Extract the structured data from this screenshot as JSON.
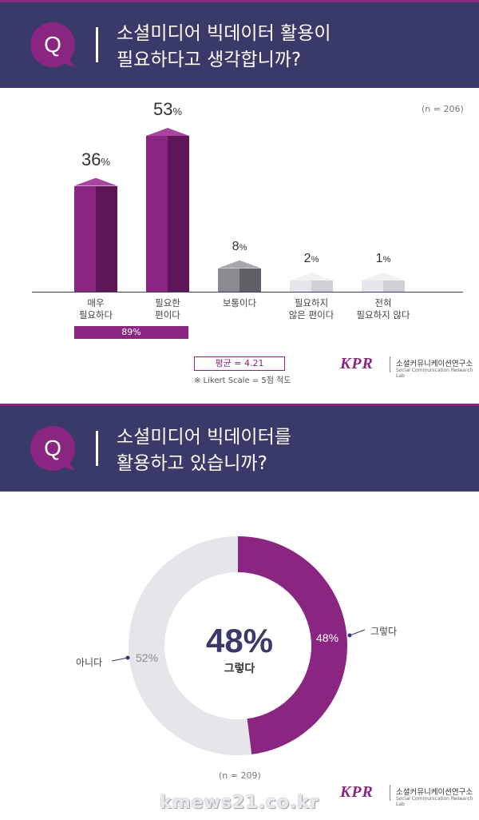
{
  "q1": {
    "badge": "Q",
    "line1": "소셜미디어 빅데이터 활용이",
    "line2": "필요하다고 생각합니까?",
    "n_label": "(n = 206)",
    "aggregate_label": "89%",
    "mean_label": "평균 = 4.21",
    "scale_note": "※ Likert Scale = 5점 척도"
  },
  "q2": {
    "badge": "Q",
    "line1": "소셜미디어 빅데이터를",
    "line2": "활용하고 있습니까?",
    "n_label": "(n = 209)",
    "center_value": "48%",
    "center_label": "그렇다"
  },
  "logo": {
    "mark": "KPR",
    "name_kr": "소셜커뮤니케이션연구소",
    "name_en": "Social Communication Research Lab"
  },
  "watermark": "kmews21.co.kr",
  "colors": {
    "navy": "#3a3a6a",
    "purple": "#8a2682",
    "gray_dark": "#8a8a90",
    "gray_light": "#e6e6ea"
  },
  "chart_data": [
    {
      "type": "bar",
      "categories": [
        "매우\n필요하다",
        "필요한\n편이다",
        "보통이다",
        "필요하지\n않은 편이다",
        "전혀\n필요하지 않다"
      ],
      "values": [
        36,
        53,
        8,
        2,
        1
      ],
      "value_labels": [
        {
          "num": "36",
          "unit": "%"
        },
        {
          "num": "53",
          "unit": "%"
        },
        {
          "num": "8",
          "unit": "%"
        },
        {
          "num": "2",
          "unit": "%"
        },
        {
          "num": "1",
          "unit": "%"
        }
      ],
      "ylim": [
        0,
        60
      ],
      "grid": false
    },
    {
      "type": "pie",
      "labels": [
        "그렇다",
        "아니다"
      ],
      "values": [
        48,
        52
      ],
      "value_labels": [
        "48%",
        "52%"
      ],
      "colors": [
        "#8a2682",
        "#e6e6ea"
      ]
    }
  ]
}
